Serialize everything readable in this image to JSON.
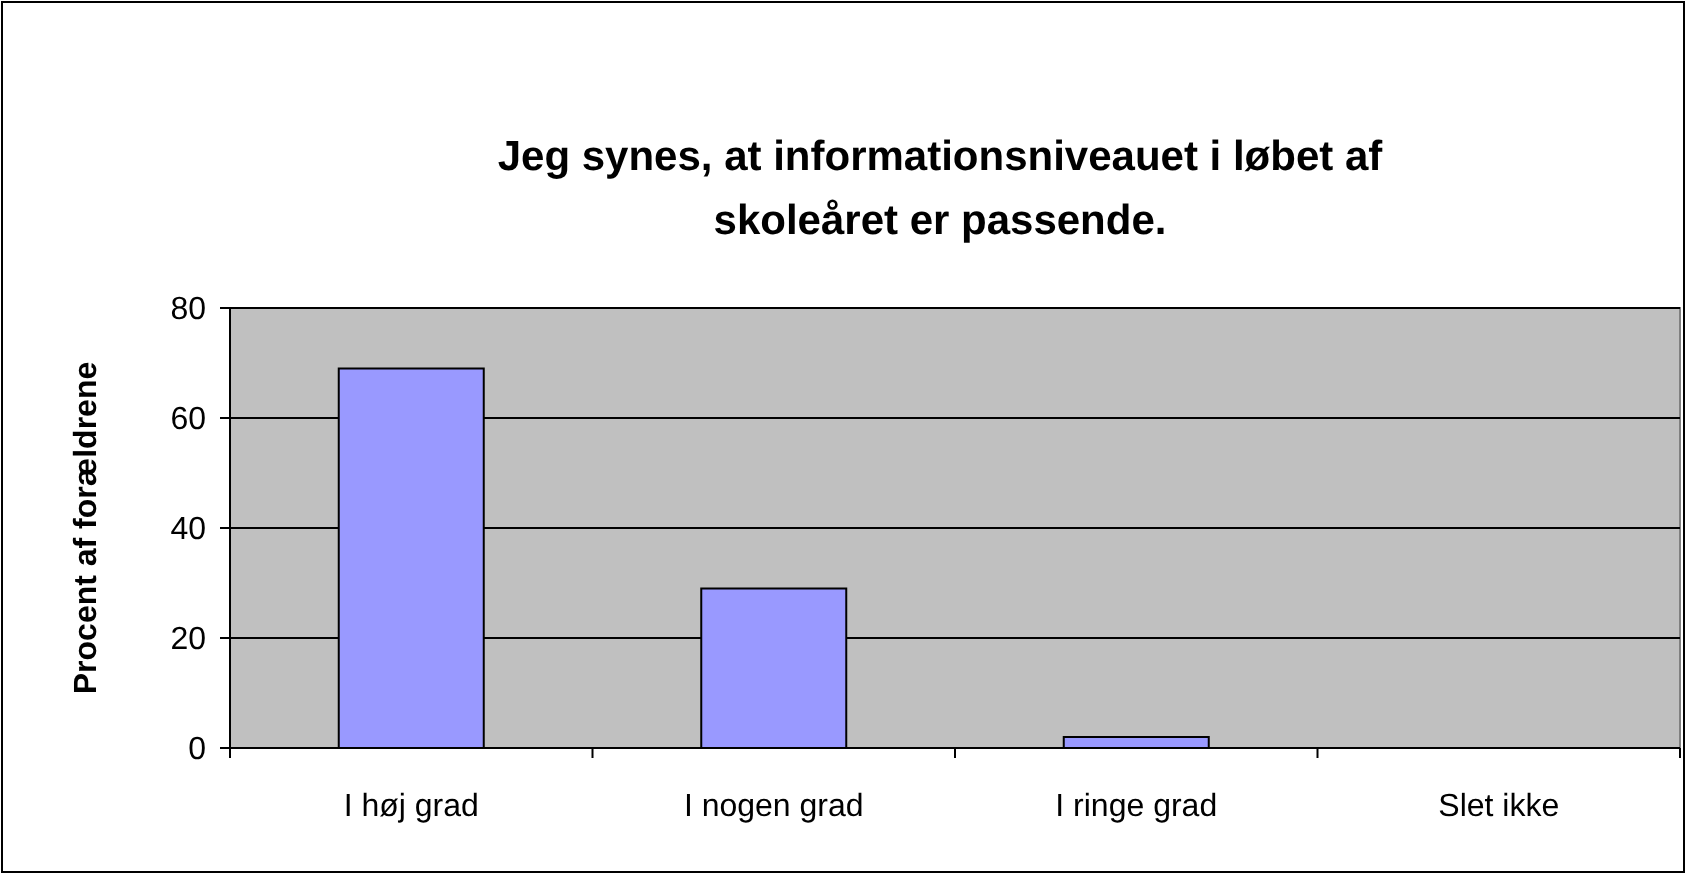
{
  "chart_data": {
    "type": "bar",
    "title": "Jeg synes, at informationsniveauet i løbet af\nskoleåret er passende.",
    "ylabel": "Procent af forældrene",
    "categories": [
      "I høj grad",
      "I nogen grad",
      "I ringe grad",
      "Slet ikke"
    ],
    "series": [
      {
        "color": "#9999ff",
        "values": [
          69,
          29,
          2,
          0
        ]
      }
    ],
    "ylim": [
      0,
      80
    ],
    "yticks": [
      0,
      20,
      40,
      60,
      80
    ],
    "grid": "y"
  }
}
